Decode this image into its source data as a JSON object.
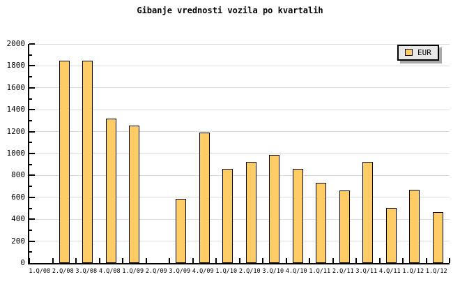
{
  "title": "Gibanje vrednosti vozila po kvartalih",
  "legend": {
    "label": "EUR",
    "swatch_color": "#ffcc66"
  },
  "colors": {
    "bar_fill": "#ffcc66",
    "bar_border": "#000000",
    "gridline": "#dcdcdc",
    "axis": "#000000",
    "legend_bg": "#e9e9e9",
    "legend_shadow": "#a9a9a9",
    "background": "#ffffff"
  },
  "chart_data": {
    "type": "bar",
    "title": "Gibanje vrednosti vozila po kvartalih",
    "xlabel": "",
    "ylabel": "",
    "categories": [
      "1.Q/08",
      "2.Q/08",
      "3.Q/08",
      "4.Q/08",
      "1.Q/09",
      "2.Q/09",
      "3.Q/09",
      "4.Q/09",
      "1.Q/10",
      "2.Q/10",
      "3.Q/10",
      "4.Q/10",
      "1.Q/11",
      "2.Q/11",
      "3.Q/11",
      "4.Q/11",
      "1.Q/12",
      "1.Q/12"
    ],
    "series": [
      {
        "name": "EUR",
        "values": [
          null,
          1845,
          1850,
          1320,
          1255,
          null,
          585,
          1190,
          860,
          925,
          985,
          860,
          730,
          665,
          925,
          500,
          670,
          465
        ]
      }
    ],
    "ylim": [
      0,
      2000
    ],
    "ytick_major": 200,
    "ytick_minor": 100,
    "yticklabels": [
      "0",
      "200",
      "400",
      "600",
      "800",
      "1000",
      "1200",
      "1400",
      "1600",
      "1800",
      "2000"
    ],
    "grid": "horizontal-major",
    "legend_position": "top-right"
  }
}
